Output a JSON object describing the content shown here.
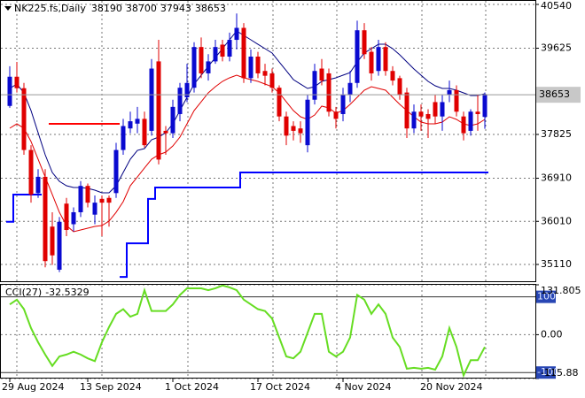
{
  "chart_data": [
    {
      "type": "candlestick",
      "title": "NK225.fs,Daily",
      "title_values": [
        38190,
        38700,
        37943,
        38653
      ],
      "categories": [
        "29 Aug 2024",
        null,
        null,
        null,
        null,
        null,
        null,
        null,
        null,
        null,
        null,
        "13 Sep 2024",
        null,
        null,
        null,
        null,
        null,
        null,
        null,
        null,
        null,
        null,
        null,
        "1 Oct 2024",
        null,
        null,
        null,
        null,
        null,
        null,
        null,
        null,
        null,
        null,
        null,
        "17 Oct 2024",
        null,
        null,
        null,
        null,
        null,
        null,
        null,
        null,
        null,
        null,
        null,
        "4 Nov 2024",
        null,
        null,
        null,
        null,
        null,
        null,
        null,
        null,
        null,
        null,
        null,
        "20 Nov 2024",
        null,
        null,
        null,
        null,
        null,
        null,
        null,
        null
      ],
      "open": [
        38420,
        39030,
        38790,
        37500,
        36600,
        36940,
        35900,
        35000,
        36380,
        35950,
        36200,
        36750,
        36150,
        36480,
        36500,
        36600,
        37500,
        37950,
        38050,
        38150,
        37900,
        39350,
        37900,
        37850,
        38250,
        38600,
        38800,
        39650,
        39100,
        39350,
        39700,
        39450,
        39800,
        40050,
        39000,
        39450,
        39150,
        39100,
        38800,
        38200,
        38000,
        37950,
        37600,
        38550,
        39200,
        39100,
        38300,
        38250,
        38650,
        38900,
        40000,
        39550,
        39150,
        39650,
        39150,
        39000,
        38700,
        37950,
        38300,
        38250,
        38500,
        38200,
        38650,
        38750,
        38200,
        37900,
        38300,
        38190
      ],
      "high": [
        39250,
        39340,
        38900,
        37600,
        37100,
        37100,
        36200,
        36100,
        36500,
        36300,
        36850,
        36800,
        36550,
        36550,
        36550,
        37650,
        38150,
        38300,
        38400,
        38300,
        39400,
        39800,
        38000,
        38550,
        38900,
        39300,
        39750,
        39850,
        39500,
        39800,
        39800,
        39950,
        40350,
        40150,
        39600,
        39550,
        39300,
        39200,
        38850,
        38300,
        38100,
        38100,
        38650,
        39300,
        39400,
        39200,
        38400,
        38800,
        39150,
        40200,
        40150,
        39650,
        39800,
        39750,
        39250,
        39050,
        38800,
        38450,
        38450,
        38350,
        38650,
        38650,
        38950,
        38850,
        38300,
        38350,
        38650,
        38700
      ],
      "low": [
        38380,
        38700,
        37400,
        36400,
        36500,
        35050,
        35100,
        34950,
        35700,
        35800,
        36100,
        36300,
        35950,
        35700,
        35900,
        36500,
        37400,
        37850,
        37850,
        37550,
        37800,
        37200,
        37400,
        37750,
        38100,
        38500,
        38700,
        39000,
        38950,
        39300,
        39350,
        39350,
        39600,
        38900,
        38900,
        39000,
        38850,
        38700,
        38100,
        37600,
        37700,
        37650,
        37450,
        38450,
        38850,
        38200,
        37950,
        38100,
        38500,
        38800,
        39400,
        38950,
        39050,
        39050,
        38850,
        38550,
        37750,
        37850,
        37900,
        37750,
        38050,
        37900,
        38500,
        38200,
        37700,
        37800,
        37900,
        37943
      ],
      "close": [
        39030,
        38790,
        37500,
        36570,
        36940,
        35180,
        35300,
        36000,
        35830,
        36200,
        36750,
        36400,
        36400,
        36400,
        36400,
        37500,
        38000,
        38100,
        38150,
        37600,
        39200,
        37300,
        37850,
        38400,
        38800,
        38900,
        39650,
        39100,
        39350,
        39650,
        39450,
        39800,
        40050,
        39000,
        39450,
        39100,
        39050,
        38800,
        38200,
        37800,
        37900,
        37850,
        38550,
        39150,
        38950,
        38300,
        38150,
        38650,
        38900,
        40000,
        39500,
        39100,
        39650,
        39150,
        38950,
        38650,
        37950,
        38300,
        38200,
        38150,
        38200,
        38500,
        38750,
        38300,
        37850,
        38300,
        38250,
        38653
      ],
      "up_color": "#0a0ad0",
      "down_color": "#e00000",
      "overlays": [
        {
          "style": "line",
          "color": "#000080",
          "values": [
            38785,
            38877,
            38693,
            38323,
            37861,
            37400,
            37030,
            36846,
            36753,
            36716,
            36716,
            36698,
            36661,
            36606,
            36606,
            36753,
            37030,
            37307,
            37492,
            37529,
            37714,
            37769,
            37861,
            38046,
            38323,
            38600,
            38877,
            39062,
            39247,
            39431,
            39616,
            39801,
            39986,
            39893,
            39801,
            39708,
            39616,
            39524,
            39339,
            39155,
            38970,
            38877,
            38785,
            38822,
            38933,
            38970,
            39007,
            39062,
            39117,
            39339,
            39524,
            39616,
            39708,
            39708,
            39616,
            39487,
            39339,
            39191,
            39062,
            38933,
            38840,
            38785,
            38785,
            38748,
            38693,
            38637,
            38637,
            38674
          ]
        },
        {
          "style": "line",
          "color": "#e00000",
          "values": [
            37954,
            38046,
            37954,
            37677,
            37307,
            36938,
            36569,
            36199,
            35922,
            35793,
            35830,
            35867,
            35904,
            35922,
            36014,
            36199,
            36421,
            36753,
            36938,
            37123,
            37307,
            37400,
            37455,
            37584,
            37769,
            38046,
            38323,
            38508,
            38693,
            38822,
            38933,
            39007,
            39062,
            39007,
            38970,
            38933,
            38877,
            38822,
            38693,
            38508,
            38323,
            38194,
            38139,
            38231,
            38416,
            38379,
            38268,
            38323,
            38453,
            38600,
            38748,
            38822,
            38785,
            38748,
            38600,
            38453,
            38323,
            38194,
            38083,
            38046,
            38046,
            38083,
            38194,
            38139,
            38046,
            38009,
            38046,
            38139
          ]
        },
        {
          "style": "step",
          "color": "#0000ff",
          "values": [
            36000,
            36569,
            36569,
            36569,
            36569,
            null,
            null,
            null,
            null,
            null,
            null,
            null,
            null,
            null,
            null,
            null,
            34850,
            35550,
            35550,
            35550,
            36480,
            36716,
            36716,
            36716,
            36716,
            36716,
            36716,
            36716,
            36716,
            36716,
            36716,
            36716,
            36716,
            37030,
            37030,
            37030,
            37030,
            37030,
            37030,
            37030,
            37030,
            37030,
            37030,
            37030,
            37030,
            37030,
            37030,
            37030,
            37030,
            37030,
            37030,
            37030,
            37030,
            37030,
            37030,
            37030,
            37030,
            37030,
            37030,
            37030,
            37030,
            37030,
            37030,
            37030,
            37030,
            37030,
            37030,
            37030
          ]
        },
        {
          "style": "step",
          "color": "#ff0000",
          "values": [
            null,
            null,
            null,
            null,
            null,
            null,
            38046,
            38046,
            38046,
            38046,
            38046,
            38046,
            38046,
            38046,
            38046,
            38046,
            null,
            null,
            null,
            null,
            null,
            null,
            null,
            null,
            null,
            null,
            null,
            null,
            null,
            null,
            null,
            null,
            null,
            null,
            null,
            null,
            null,
            null,
            null,
            null,
            null,
            null,
            null,
            null,
            null,
            null,
            null,
            null,
            null,
            null,
            null,
            null,
            null,
            null,
            null,
            null,
            null,
            null,
            null,
            null,
            null,
            null,
            null,
            null,
            null,
            null,
            null,
            null
          ]
        }
      ],
      "last_price": 38653,
      "ylim": [
        34759,
        40632
      ],
      "yticks": [
        40540,
        39625,
        37825,
        36910,
        36010,
        35110
      ],
      "grid": true
    },
    {
      "type": "line",
      "title": "CCI(27)",
      "color": "#66dd22",
      "values": [
        80,
        92.5,
        67.5,
        17.5,
        -20,
        -52.5,
        -82.5,
        -57.5,
        -52.5,
        -45,
        -52.5,
        -62.5,
        -70,
        -20,
        20,
        55,
        67.5,
        47.5,
        55,
        117.5,
        62.5,
        62.5,
        62.5,
        80,
        105,
        122.5,
        122.5,
        122.5,
        117.5,
        122.5,
        130,
        125,
        117.5,
        92.5,
        80,
        67.5,
        62.5,
        42.5,
        -7.5,
        -57.5,
        -62.5,
        -45,
        5,
        55,
        55,
        -45,
        -57.5,
        -45,
        -7.5,
        105,
        92.5,
        55,
        80,
        55,
        -7.5,
        -32.5,
        -90,
        -87.5,
        -90,
        -87.5,
        -92.5,
        -57.5,
        17.5,
        -32.5,
        -107.5,
        -67.5,
        -67.5,
        -32.5329
      ],
      "ylim": [
        -115.88,
        131.805
      ],
      "yticks": [
        131.805,
        {
          "value": 0,
          "label": "0.00"
        },
        -115.88
      ],
      "levels": [
        100,
        -100
      ],
      "grid": true
    }
  ]
}
